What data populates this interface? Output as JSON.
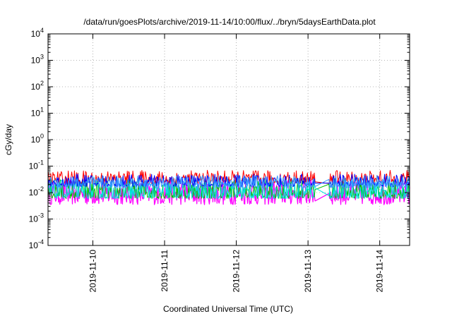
{
  "chart_data": {
    "type": "line",
    "title": "/data/run/goesPlots/archive/2019-11-14/10:00/flux/../bryn/5daysEarthData.plot",
    "xlabel": "Coordinated Universal Time (UTC)",
    "ylabel": "cGy/day",
    "yscale": "log",
    "ylim": [
      0.0001,
      10000
    ],
    "xlim": [
      "2019-11-09T09:00",
      "2019-11-14T10:00"
    ],
    "grid": true,
    "x_ticks": [
      "2019-11-10",
      "2019-11-11",
      "2019-11-12",
      "2019-11-13",
      "2019-11-14"
    ],
    "y_ticks": [
      {
        "base": "10",
        "exp": "-4"
      },
      {
        "base": "10",
        "exp": "-3"
      },
      {
        "base": "10",
        "exp": "-2"
      },
      {
        "base": "10",
        "exp": "-1"
      },
      {
        "base": "10",
        "exp": "0"
      },
      {
        "base": "10",
        "exp": "1"
      },
      {
        "base": "10",
        "exp": "2"
      },
      {
        "base": "10",
        "exp": "3"
      },
      {
        "base": "10",
        "exp": "4"
      }
    ],
    "data_gap": [
      "2019-11-13T02:30",
      "2019-11-13T07:00"
    ],
    "series": [
      {
        "color": "#ff0000",
        "low": 0.022,
        "high": 0.07
      },
      {
        "color": "#00c000",
        "low": 0.006,
        "high": 0.035
      },
      {
        "color": "#00e0e0",
        "low": 0.006,
        "high": 0.03
      },
      {
        "color": "#0000ff",
        "low": 0.017,
        "high": 0.05
      },
      {
        "color": "#3399ff",
        "low": 0.015,
        "high": 0.045
      },
      {
        "color": "#ff00ff",
        "low": 0.0035,
        "high": 0.03
      }
    ]
  }
}
